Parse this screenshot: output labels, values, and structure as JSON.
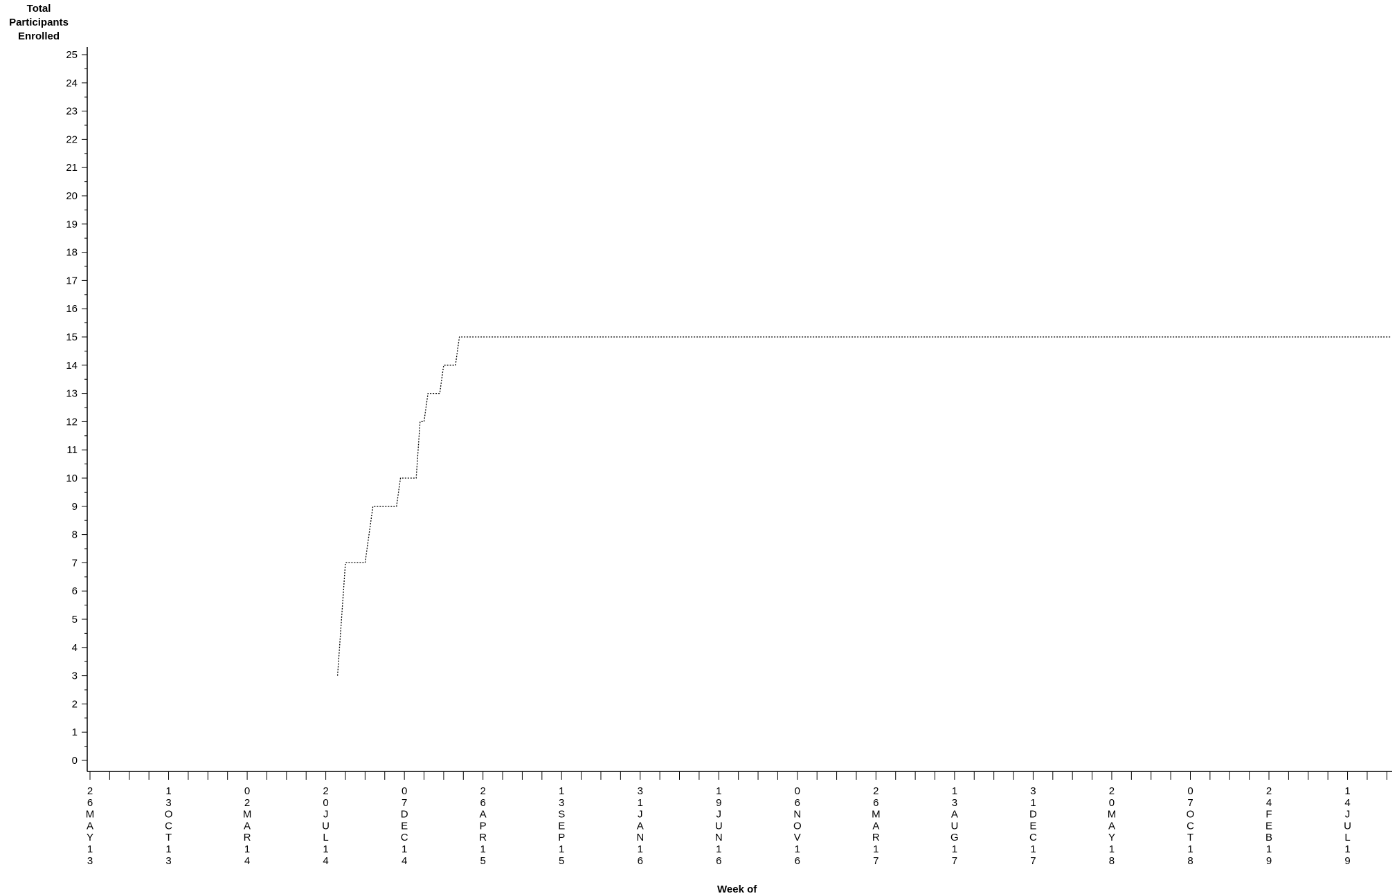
{
  "chart_data": {
    "type": "line",
    "title": "",
    "ylabel_lines": [
      "Total",
      "Participants",
      "Enrolled"
    ],
    "xlabel": "Week of",
    "ylim": [
      0,
      25
    ],
    "yticks": [
      0,
      1,
      2,
      3,
      4,
      5,
      6,
      7,
      8,
      9,
      10,
      11,
      12,
      13,
      14,
      15,
      16,
      17,
      18,
      19,
      20,
      21,
      22,
      23,
      24,
      25
    ],
    "xlim": [
      "2013-05-26",
      "2019-09-29"
    ],
    "xtick_labels": [
      "26MAY13",
      "13OCT13",
      "02MAR14",
      "20JUL14",
      "07DEC14",
      "26APR15",
      "13SEP15",
      "31JAN16",
      "19JUN16",
      "06NOV16",
      "26MAR17",
      "13AUG17",
      "31DEC17",
      "20MAY18",
      "07OCT18",
      "24FEB19",
      "14JUL19"
    ],
    "xtick_dates": [
      "2013-05-26",
      "2013-10-13",
      "2014-03-02",
      "2014-07-20",
      "2014-12-07",
      "2015-04-26",
      "2015-09-13",
      "2016-01-31",
      "2016-06-19",
      "2016-11-06",
      "2017-03-26",
      "2017-08-13",
      "2017-12-31",
      "2018-05-20",
      "2018-10-07",
      "2019-02-24",
      "2019-07-14"
    ],
    "grid": false,
    "legend": "none",
    "line_style": "dotted",
    "series": [
      {
        "points": [
          {
            "x": "2014-08-10",
            "y": 3
          },
          {
            "x": "2014-08-24",
            "y": 7
          },
          {
            "x": "2014-09-28",
            "y": 7
          },
          {
            "x": "2014-10-12",
            "y": 9
          },
          {
            "x": "2014-11-23",
            "y": 9
          },
          {
            "x": "2014-11-30",
            "y": 10
          },
          {
            "x": "2014-12-28",
            "y": 10
          },
          {
            "x": "2015-01-04",
            "y": 12
          },
          {
            "x": "2015-01-11",
            "y": 12
          },
          {
            "x": "2015-01-18",
            "y": 13
          },
          {
            "x": "2015-02-08",
            "y": 13
          },
          {
            "x": "2015-02-15",
            "y": 14
          },
          {
            "x": "2015-03-08",
            "y": 14
          },
          {
            "x": "2015-03-15",
            "y": 15
          },
          {
            "x": "2019-09-29",
            "y": 15
          }
        ]
      }
    ]
  }
}
